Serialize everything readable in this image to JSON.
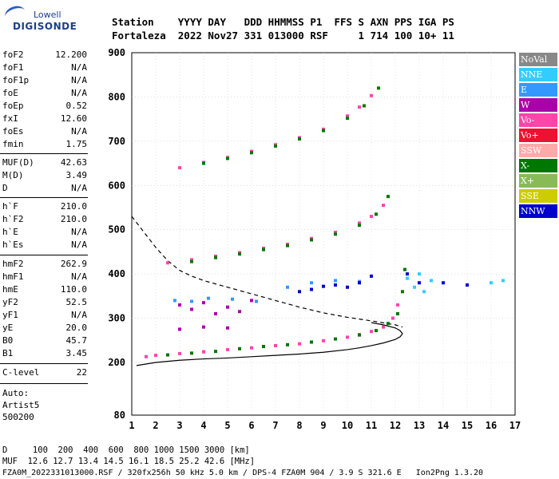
{
  "logo": {
    "line1": "Lowell",
    "line2": "DIGISONDE"
  },
  "header": {
    "line1": "Station    YYYY DAY   DDD HHMMSS P1  FFS S AXN PPS IGA PS",
    "line2": "Fortaleza  2022 Nov27 331 013000 RSF     1 714 100 10+ 11"
  },
  "params": [
    {
      "k": "foF2",
      "v": "12.200"
    },
    {
      "k": "foF1",
      "v": "N/A"
    },
    {
      "k": "foF1p",
      "v": "N/A"
    },
    {
      "k": "foE",
      "v": "N/A"
    },
    {
      "k": "foEp",
      "v": "0.52"
    },
    {
      "k": "fxI",
      "v": "12.60"
    },
    {
      "k": "foEs",
      "v": "N/A"
    },
    {
      "k": "fmin",
      "v": "1.75"
    },
    {
      "k": "MUF(D)",
      "v": "42.63"
    },
    {
      "k": "M(D)",
      "v": "3.49"
    },
    {
      "k": "D",
      "v": "N/A"
    },
    {
      "k": "h`F",
      "v": "210.0"
    },
    {
      "k": "h`F2",
      "v": "210.0"
    },
    {
      "k": "h`E",
      "v": "N/A"
    },
    {
      "k": "h`Es",
      "v": "N/A"
    },
    {
      "k": "hmF2",
      "v": "262.9"
    },
    {
      "k": "hmF1",
      "v": "N/A"
    },
    {
      "k": "hmE",
      "v": "110.0"
    },
    {
      "k": "yF2",
      "v": "52.5"
    },
    {
      "k": "yF1",
      "v": "N/A"
    },
    {
      "k": "yE",
      "v": "20.0"
    },
    {
      "k": "B0",
      "v": "45.7"
    },
    {
      "k": "B1",
      "v": "3.45"
    },
    {
      "k": "C-level",
      "v": "22"
    }
  ],
  "notes": {
    "auto": "Auto:",
    "artist": "Artist5",
    "version": "500200"
  },
  "bottom": {
    "line1": "D     100  200  400  600  800 1000 1500 3000 [km]",
    "line2": "MUF  12.6 12.7 13.4 14.5 16.1 18.5 25.2 42.6 [MHz]",
    "line3": "FZA0M_2022331013000.RSF / 320fx256h 50 kHz 5.0 km / DPS-4 FZA0M 904 / 3.9 S 321.6 E   Ion2Png 1.3.20"
  },
  "legend": [
    {
      "label": "NoVal",
      "color": "#888888"
    },
    {
      "label": "NNE",
      "color": "#33ccff"
    },
    {
      "label": "E",
      "color": "#3399ff"
    },
    {
      "label": "W",
      "color": "#aa00aa"
    },
    {
      "label": "Vo-",
      "color": "#ff44aa"
    },
    {
      "label": "Vo+",
      "color": "#ee1133"
    },
    {
      "label": "SSW",
      "color": "#ffaaaa"
    },
    {
      "label": "X-",
      "color": "#007700"
    },
    {
      "label": "X+",
      "color": "#88bb55"
    },
    {
      "label": "SSE",
      "color": "#cccc00"
    },
    {
      "label": "NNW",
      "color": "#0000cc"
    }
  ],
  "chart_data": {
    "type": "scatter",
    "xlim": [
      1,
      17
    ],
    "ylim": [
      80,
      900
    ],
    "xticks": [
      "1",
      "2",
      "3",
      "4",
      "5",
      "6",
      "7",
      "8",
      "9",
      "10",
      "11",
      "12",
      "13",
      "14",
      "15",
      "16",
      "17"
    ],
    "yticks": [
      "80",
      "200",
      "300",
      "400",
      "500",
      "600",
      "700",
      "800",
      "900"
    ],
    "grid": true,
    "series": [
      {
        "name": "Vo-",
        "color": "#ff44aa",
        "points": [
          [
            1.6,
            213
          ],
          [
            2.0,
            216
          ],
          [
            3.0,
            220
          ],
          [
            4.0,
            224
          ],
          [
            5.0,
            229
          ],
          [
            6.0,
            233
          ],
          [
            7.0,
            238
          ],
          [
            8.0,
            242
          ],
          [
            9.0,
            249
          ],
          [
            10.0,
            257
          ],
          [
            10.5,
            263
          ],
          [
            11.0,
            270
          ],
          [
            11.5,
            280
          ],
          [
            11.9,
            300
          ],
          [
            12.1,
            330
          ]
        ]
      },
      {
        "name": "X-",
        "color": "#007700",
        "points": [
          [
            2.5,
            217
          ],
          [
            3.5,
            221
          ],
          [
            4.5,
            225
          ],
          [
            5.5,
            231
          ],
          [
            6.5,
            236
          ],
          [
            7.5,
            240
          ],
          [
            8.5,
            246
          ],
          [
            9.5,
            253
          ],
          [
            10.5,
            262
          ],
          [
            11.2,
            272
          ],
          [
            11.7,
            288
          ],
          [
            12.1,
            310
          ],
          [
            12.3,
            360
          ],
          [
            12.4,
            410
          ]
        ]
      },
      {
        "name": "Vo-",
        "color": "#ff44aa",
        "points": [
          [
            2.5,
            425
          ],
          [
            3.5,
            432
          ],
          [
            4.5,
            440
          ],
          [
            5.5,
            448
          ],
          [
            6.5,
            458
          ],
          [
            7.5,
            467
          ],
          [
            8.5,
            480
          ],
          [
            9.5,
            494
          ],
          [
            10.5,
            515
          ],
          [
            11.0,
            530
          ],
          [
            11.5,
            555
          ]
        ]
      },
      {
        "name": "X-",
        "color": "#007700",
        "points": [
          [
            3.5,
            428
          ],
          [
            4.5,
            437
          ],
          [
            5.5,
            445
          ],
          [
            6.5,
            455
          ],
          [
            7.5,
            464
          ],
          [
            8.5,
            477
          ],
          [
            9.5,
            490
          ],
          [
            10.5,
            510
          ],
          [
            11.2,
            535
          ],
          [
            11.7,
            575
          ]
        ]
      },
      {
        "name": "Vo-",
        "color": "#ff44aa",
        "points": [
          [
            3.0,
            640
          ],
          [
            4.0,
            652
          ],
          [
            5.0,
            663
          ],
          [
            6.0,
            677
          ],
          [
            7.0,
            692
          ],
          [
            8.0,
            708
          ],
          [
            9.0,
            727
          ],
          [
            10.0,
            757
          ],
          [
            10.5,
            777
          ],
          [
            11.0,
            803
          ]
        ]
      },
      {
        "name": "X-",
        "color": "#007700",
        "points": [
          [
            4.0,
            650
          ],
          [
            5.0,
            661
          ],
          [
            6.0,
            674
          ],
          [
            7.0,
            689
          ],
          [
            8.0,
            705
          ],
          [
            9.0,
            724
          ],
          [
            10.0,
            752
          ],
          [
            10.7,
            780
          ],
          [
            11.3,
            820
          ]
        ]
      },
      {
        "name": "W",
        "color": "#aa00aa",
        "points": [
          [
            3.0,
            330
          ],
          [
            3.5,
            320
          ],
          [
            4.0,
            335
          ],
          [
            4.5,
            310
          ],
          [
            5.0,
            325
          ],
          [
            5.5,
            315
          ],
          [
            6.0,
            340
          ],
          [
            3.0,
            275
          ],
          [
            4.0,
            280
          ],
          [
            5.0,
            278
          ]
        ]
      },
      {
        "name": "E",
        "color": "#3399ff",
        "points": [
          [
            2.8,
            340
          ],
          [
            3.5,
            338
          ],
          [
            4.2,
            345
          ],
          [
            5.2,
            343
          ],
          [
            6.2,
            338
          ],
          [
            7.5,
            370
          ],
          [
            8.5,
            380
          ],
          [
            9.5,
            385
          ],
          [
            10.5,
            383
          ]
        ]
      },
      {
        "name": "NNW",
        "color": "#0000cc",
        "points": [
          [
            8.0,
            360
          ],
          [
            8.5,
            365
          ],
          [
            9.0,
            372
          ],
          [
            9.5,
            375
          ],
          [
            10.0,
            370
          ],
          [
            10.5,
            380
          ],
          [
            11.0,
            395
          ],
          [
            12.5,
            400
          ],
          [
            13.0,
            380
          ],
          [
            14.0,
            380
          ],
          [
            15.0,
            375
          ]
        ]
      },
      {
        "name": "NNE",
        "color": "#33ccff",
        "points": [
          [
            12.5,
            390
          ],
          [
            12.8,
            370
          ],
          [
            13.0,
            400
          ],
          [
            13.2,
            360
          ],
          [
            13.5,
            385
          ],
          [
            16.0,
            380
          ],
          [
            16.5,
            385
          ]
        ]
      }
    ],
    "curves": [
      {
        "style": "solid",
        "x": [
          1.2,
          2,
          3,
          4,
          5,
          6,
          7,
          8,
          9,
          10,
          10.5,
          11,
          11.5,
          12,
          12.2,
          12.3,
          12.2,
          12.0,
          11.5,
          11.0
        ],
        "y": [
          193,
          200,
          205,
          208,
          210,
          213,
          216,
          219,
          223,
          229,
          233,
          238,
          244,
          252,
          258,
          265,
          272,
          278,
          285,
          290
        ]
      },
      {
        "style": "dashed",
        "x": [
          1.0,
          1.5,
          2.0,
          2.5,
          3.0,
          3.5,
          4.0,
          5.0,
          6.0,
          7.0,
          8.0,
          9.0,
          10.0,
          11.0,
          12.0,
          12.3
        ],
        "y": [
          530,
          495,
          460,
          430,
          408,
          395,
          385,
          370,
          355,
          340,
          325,
          312,
          302,
          294,
          285,
          280
        ]
      }
    ]
  }
}
